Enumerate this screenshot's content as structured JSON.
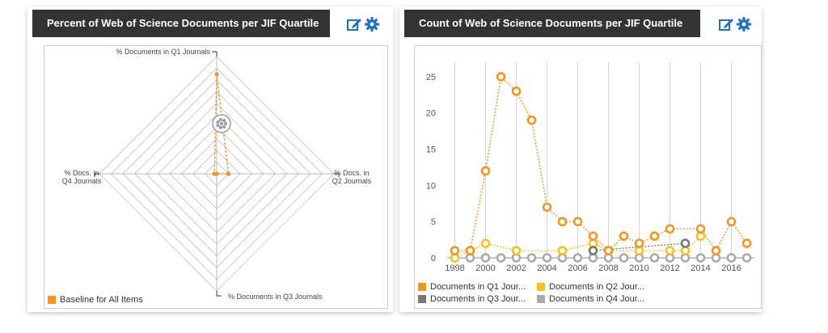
{
  "radar_panel": {
    "title": "Percent of Web of Science Documents per JIF Quartile",
    "icons": [
      "edit-icon",
      "gear-icon"
    ],
    "legend": [
      {
        "label": "Baseline for All Items",
        "color": "#f7941d"
      }
    ]
  },
  "line_panel": {
    "title": "Count of Web of Science Documents per JIF Quartile",
    "icons": [
      "edit-icon",
      "gear-icon"
    ],
    "legend": [
      {
        "label": "Documents in Q1 Jour...",
        "color": "#f7941d"
      },
      {
        "label": "Documents in Q2 Jour...",
        "color": "#fcc01e"
      },
      {
        "label": "Documents in Q3 Jour...",
        "color": "#777777"
      },
      {
        "label": "Documents in Q4 Jour...",
        "color": "#aaaaaa"
      }
    ]
  },
  "chart_data": [
    {
      "type": "radar",
      "axes": [
        "% Documents in Q1 Journals",
        "% Docs. in Q2 Journals",
        "% Documents in Q3 Journals",
        "% Docs. in Q4 Journals"
      ],
      "axis_labels": {
        "q1": [
          "% Documents in Q1 Journals"
        ],
        "q2": [
          "% Docs. in",
          "Q2 Journals"
        ],
        "q3": [
          "% Documents in Q3 Journals"
        ],
        "q4": [
          "% Docs. in",
          "Q4 Journals"
        ]
      },
      "range": [
        0,
        100
      ],
      "series": [
        {
          "name": "Baseline for All Items",
          "values": [
            85,
            10,
            0,
            2
          ]
        }
      ],
      "color": "#f7941d",
      "legend_position": "bottom-left"
    },
    {
      "type": "line",
      "x": [
        1998,
        1999,
        2000,
        2001,
        2002,
        2003,
        2004,
        2005,
        2006,
        2007,
        2008,
        2009,
        2010,
        2011,
        2012,
        2013,
        2014,
        2015,
        2016,
        2017
      ],
      "xticks": [
        1998,
        2000,
        2002,
        2004,
        2006,
        2008,
        2010,
        2012,
        2014,
        2016
      ],
      "ylim": [
        0,
        27
      ],
      "yticks": [
        0,
        5,
        10,
        15,
        20,
        25
      ],
      "series": [
        {
          "name": "Documents in Q1 Jour...",
          "color": "#f7941d",
          "values": [
            1,
            1,
            12,
            25,
            23,
            19,
            7,
            5,
            5,
            3,
            1,
            3,
            2,
            3,
            4,
            null,
            4,
            1,
            5,
            2
          ]
        },
        {
          "name": "Documents in Q2 Jour...",
          "color": "#fcc01e",
          "values": [
            0,
            1,
            2,
            null,
            1,
            null,
            null,
            1,
            null,
            2,
            1,
            null,
            1,
            null,
            1,
            1,
            3,
            null,
            null,
            null
          ]
        },
        {
          "name": "Documents in Q3 Jour...",
          "color": "#777777",
          "values": [
            null,
            null,
            null,
            null,
            null,
            null,
            null,
            null,
            null,
            1,
            null,
            null,
            null,
            null,
            null,
            2,
            null,
            null,
            null,
            null
          ]
        },
        {
          "name": "Documents in Q4 Jour...",
          "color": "#aaaaaa",
          "values": [
            0,
            0,
            0,
            0,
            0,
            0,
            0,
            0,
            0,
            0,
            0,
            0,
            0,
            0,
            0,
            0,
            0,
            0,
            0,
            0
          ]
        }
      ],
      "grid": "vertical",
      "legend_position": "bottom"
    }
  ]
}
